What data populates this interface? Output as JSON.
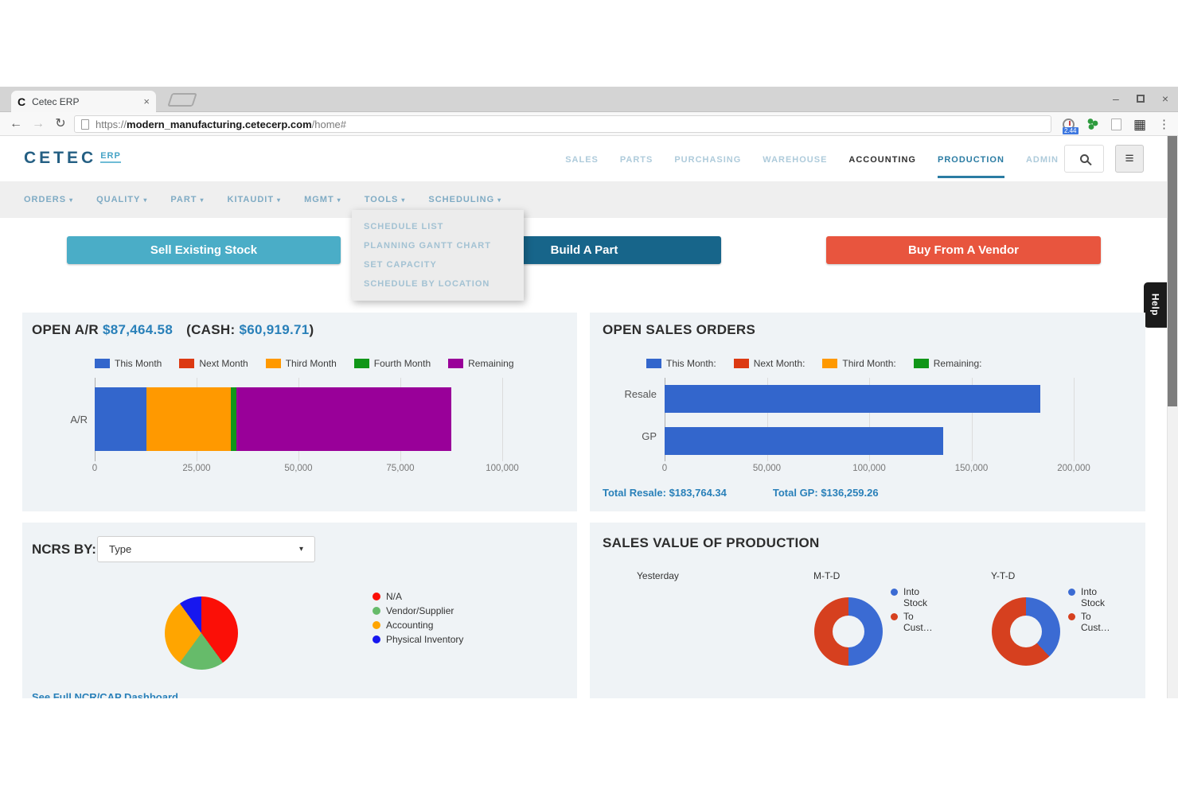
{
  "browser": {
    "tab_title": "Cetec ERP",
    "url": {
      "scheme": "https://",
      "host": "modern_manufacturing.cetecerp.com",
      "path": "/home#"
    },
    "extension_badge": "2.44"
  },
  "icons": {
    "favicon": "C",
    "tab_close": "×",
    "window_minimize": "–",
    "window_close": "×",
    "back": "←",
    "forward": "→",
    "reload": "↻",
    "menu": "≡",
    "kebab": "⋮",
    "film": "▦",
    "caret": "▾"
  },
  "header": {
    "logo_main": "CETEC",
    "logo_sub": "ERP",
    "nav": [
      {
        "label": "SALES"
      },
      {
        "label": "PARTS"
      },
      {
        "label": "PURCHASING"
      },
      {
        "label": "WAREHOUSE"
      },
      {
        "label": "ACCOUNTING"
      },
      {
        "label": "PRODUCTION"
      },
      {
        "label": "ADMIN"
      }
    ]
  },
  "subnav": {
    "items": [
      {
        "label": "ORDERS"
      },
      {
        "label": "QUALITY"
      },
      {
        "label": "PART"
      },
      {
        "label": "KITAUDIT"
      },
      {
        "label": "MGMT"
      },
      {
        "label": "TOOLS"
      },
      {
        "label": "SCHEDULING"
      }
    ]
  },
  "scheduling_dropdown": {
    "items": [
      {
        "label": "SCHEDULE LIST"
      },
      {
        "label": "PLANNING GANTT CHART"
      },
      {
        "label": "SET CAPACITY"
      },
      {
        "label": "SCHEDULE BY LOCATION"
      }
    ]
  },
  "actions": {
    "sell": "Sell Existing Stock",
    "build": "Build A Part",
    "buy": "Buy From A Vendor"
  },
  "help_tab": "Help",
  "colors": {
    "accent_blue": "#2980b9",
    "panel_bg": "#eff3f6"
  },
  "chart_data": [
    {
      "id": "open-ar",
      "type": "bar",
      "title": "OPEN A/R",
      "title_amount": "$87,464.58",
      "cash_prefix": "(CASH:",
      "cash_amount": "$60,919.71",
      "cash_suffix": ")",
      "categories": [
        "A/R"
      ],
      "series": [
        {
          "name": "This Month",
          "color": "#3366cc",
          "values": [
            12700
          ]
        },
        {
          "name": "Next Month",
          "color": "#dc3912",
          "values": [
            0
          ]
        },
        {
          "name": "Third Month",
          "color": "#ff9900",
          "values": [
            20700
          ]
        },
        {
          "name": "Fourth Month",
          "color": "#109618",
          "values": [
            1300
          ]
        },
        {
          "name": "Remaining",
          "color": "#990099",
          "values": [
            52764.58
          ]
        }
      ],
      "xlim": [
        0,
        100000
      ],
      "tick_labels": [
        "0",
        "25,000",
        "50,000",
        "75,000",
        "100,000"
      ],
      "grid": true,
      "legend_position": "top"
    },
    {
      "id": "open-sales-orders",
      "type": "bar",
      "title": "OPEN SALES ORDERS",
      "legend": [
        {
          "label": "This Month:",
          "color": "#3366cc"
        },
        {
          "label": "Next Month:",
          "color": "#dc3912"
        },
        {
          "label": "Third Month:",
          "color": "#ff9900"
        },
        {
          "label": "Remaining:",
          "color": "#109618"
        }
      ],
      "categories": [
        "Resale",
        "GP"
      ],
      "values": [
        183764.34,
        136259.26
      ],
      "bar_color": "#3366cc",
      "xlim": [
        0,
        200000
      ],
      "tick_labels": [
        "0",
        "50,000",
        "100,000",
        "150,000",
        "200,000"
      ],
      "grid": true,
      "totals": [
        {
          "label": "Total Resale:",
          "value": "$183,764.34"
        },
        {
          "label": "Total GP:",
          "value": "$136,259.26"
        }
      ]
    },
    {
      "id": "ncrs-by-type",
      "type": "pie",
      "panel_label": "NCRS BY:",
      "selector_value": "Type",
      "slices": [
        {
          "label": "N/A",
          "color": "#fb0f07",
          "pct": 40
        },
        {
          "label": "Vendor/Supplier",
          "color": "#66bb6a",
          "pct": 20
        },
        {
          "label": "Accounting",
          "color": "#ffa500",
          "pct": 30
        },
        {
          "label": "Physical Inventory",
          "color": "#1717ef",
          "pct": 10
        }
      ],
      "footer_link": "See Full NCR/CAP Dashboard"
    },
    {
      "id": "sales-value-of-production",
      "type": "pie",
      "title": "SALES VALUE OF PRODUCTION",
      "groups": [
        {
          "label": "Yesterday",
          "slices": []
        },
        {
          "label": "M-T-D",
          "slices": [
            {
              "label": "Into Stock",
              "color": "#3b6bd3",
              "pct": 50
            },
            {
              "label": "To Cust…",
              "color": "#d6401f",
              "pct": 50
            }
          ]
        },
        {
          "label": "Y-T-D",
          "slices": [
            {
              "label": "Into Stock",
              "color": "#3b6bd3",
              "pct": 38
            },
            {
              "label": "To Cust…",
              "color": "#d6401f",
              "pct": 62
            }
          ]
        }
      ]
    }
  ]
}
